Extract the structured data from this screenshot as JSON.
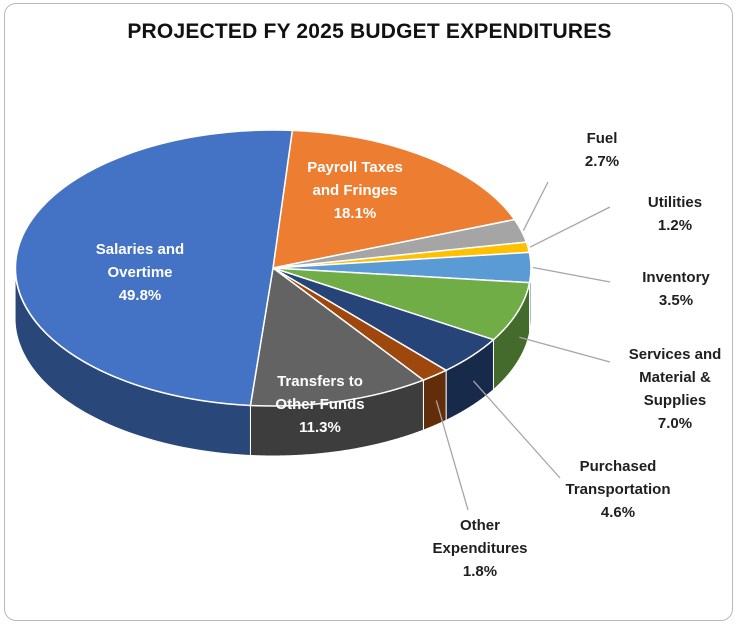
{
  "chart_data": {
    "type": "pie",
    "title": "PROJECTED FY 2025 BUDGET EXPENDITURES",
    "slices": [
      {
        "label": "Payroll Taxes and Fringes",
        "value": 18.1,
        "value_label": "18.1%",
        "color": "#ed7d31",
        "label_lines": [
          "Payroll Taxes",
          "and Fringes"
        ]
      },
      {
        "label": "Fuel",
        "value": 2.7,
        "value_label": "2.7%",
        "color": "#a5a5a5",
        "label_lines": [
          "Fuel"
        ]
      },
      {
        "label": "Utilities",
        "value": 1.2,
        "value_label": "1.2%",
        "color": "#ffc000",
        "label_lines": [
          "Utilities"
        ]
      },
      {
        "label": "Inventory",
        "value": 3.5,
        "value_label": "3.5%",
        "color": "#5b9bd5",
        "label_lines": [
          "Inventory"
        ]
      },
      {
        "label": "Services and Material & Supplies",
        "value": 7.0,
        "value_label": "7.0%",
        "color": "#70ad47",
        "label_lines": [
          "Services and",
          "Material &",
          "Supplies"
        ]
      },
      {
        "label": "Purchased Transportation",
        "value": 4.6,
        "value_label": "4.6%",
        "color": "#264478",
        "label_lines": [
          "Purchased",
          "Transportation"
        ]
      },
      {
        "label": "Other Expenditures",
        "value": 1.8,
        "value_label": "1.8%",
        "color": "#9e480e",
        "label_lines": [
          "Other",
          "Expenditures"
        ]
      },
      {
        "label": "Transfers to Other Funds",
        "value": 11.3,
        "value_label": "11.3%",
        "color": "#636363",
        "label_lines": [
          "Transfers to",
          "Other Funds"
        ]
      },
      {
        "label": "Salaries and Overtime",
        "value": 49.8,
        "value_label": "49.8%",
        "color": "#4472c4",
        "label_lines": [
          "Salaries and",
          "Overtime"
        ]
      }
    ]
  }
}
